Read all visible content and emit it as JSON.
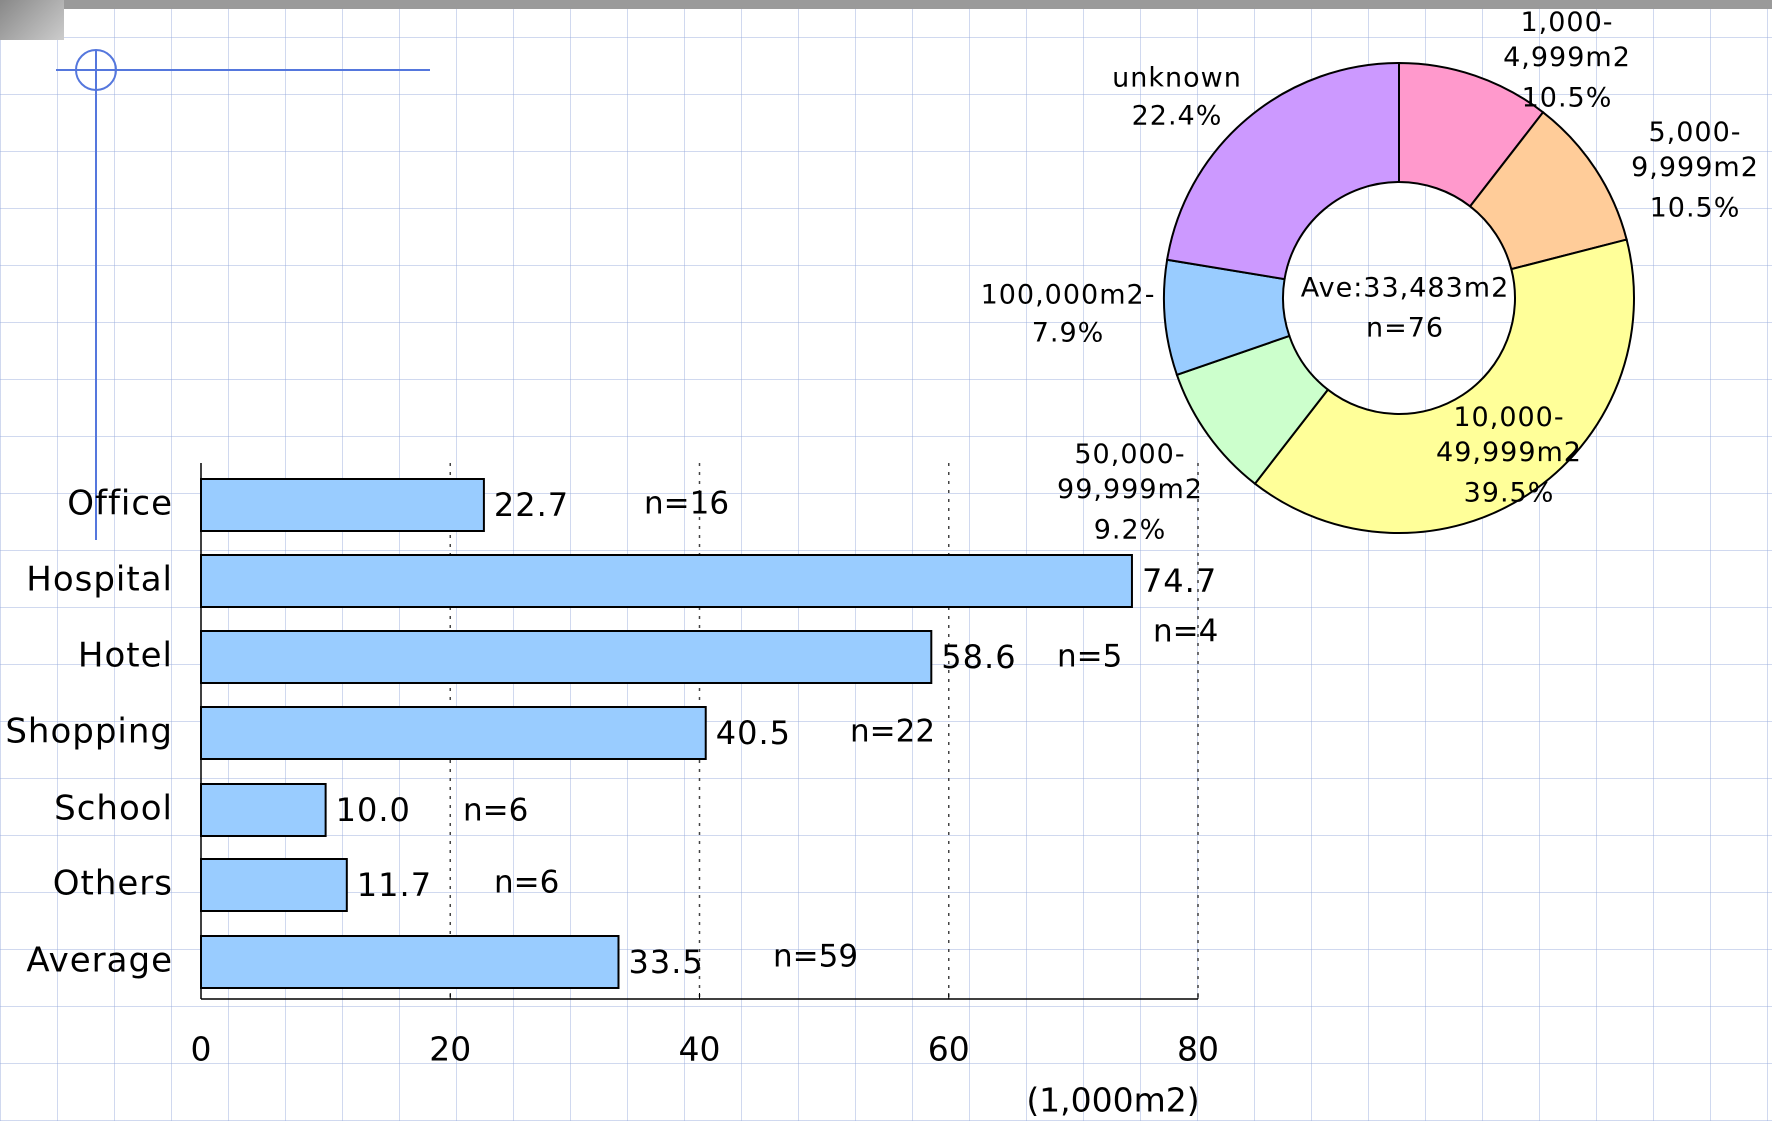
{
  "chart_data": [
    {
      "type": "bar",
      "orientation": "horizontal",
      "categories": [
        "Office",
        "Hospital",
        "Hotel",
        "Shopping",
        "School",
        "Others",
        "Average"
      ],
      "values": [
        22.7,
        74.7,
        58.6,
        40.5,
        10.0,
        11.7,
        33.5
      ],
      "value_labels": [
        "22.7",
        "74.7",
        "58.6",
        "40.5",
        "10.0",
        "11.7",
        "33.5"
      ],
      "annotations": [
        "n=16",
        "n=4",
        "n=5",
        "n=22",
        "n=6",
        "n=6",
        "n=59"
      ],
      "color": "#99ccff",
      "xlim": [
        0,
        80
      ],
      "xticks": [
        0,
        20,
        40,
        60,
        80
      ],
      "x_label": "(1,000m2)",
      "grid": true
    },
    {
      "type": "donut",
      "categories": [
        "1,000-\n4,999m2",
        "5,000-\n9,999m2",
        "10,000-\n49,999m2",
        "50,000-\n99,999m2",
        "100,000m2-",
        "unknown"
      ],
      "values": [
        10.5,
        10.5,
        39.5,
        9.2,
        7.9,
        22.4
      ],
      "value_labels": [
        "10.5%",
        "10.5%",
        "39.5%",
        "9.2%",
        "7.9%",
        "22.4%"
      ],
      "colors": [
        "#ff99cc",
        "#ffcc99",
        "#ffff99",
        "#ccffcc",
        "#99ccff",
        "#cc99ff"
      ],
      "center_label": [
        "Ave:33,483m2",
        "n=76"
      ]
    }
  ]
}
